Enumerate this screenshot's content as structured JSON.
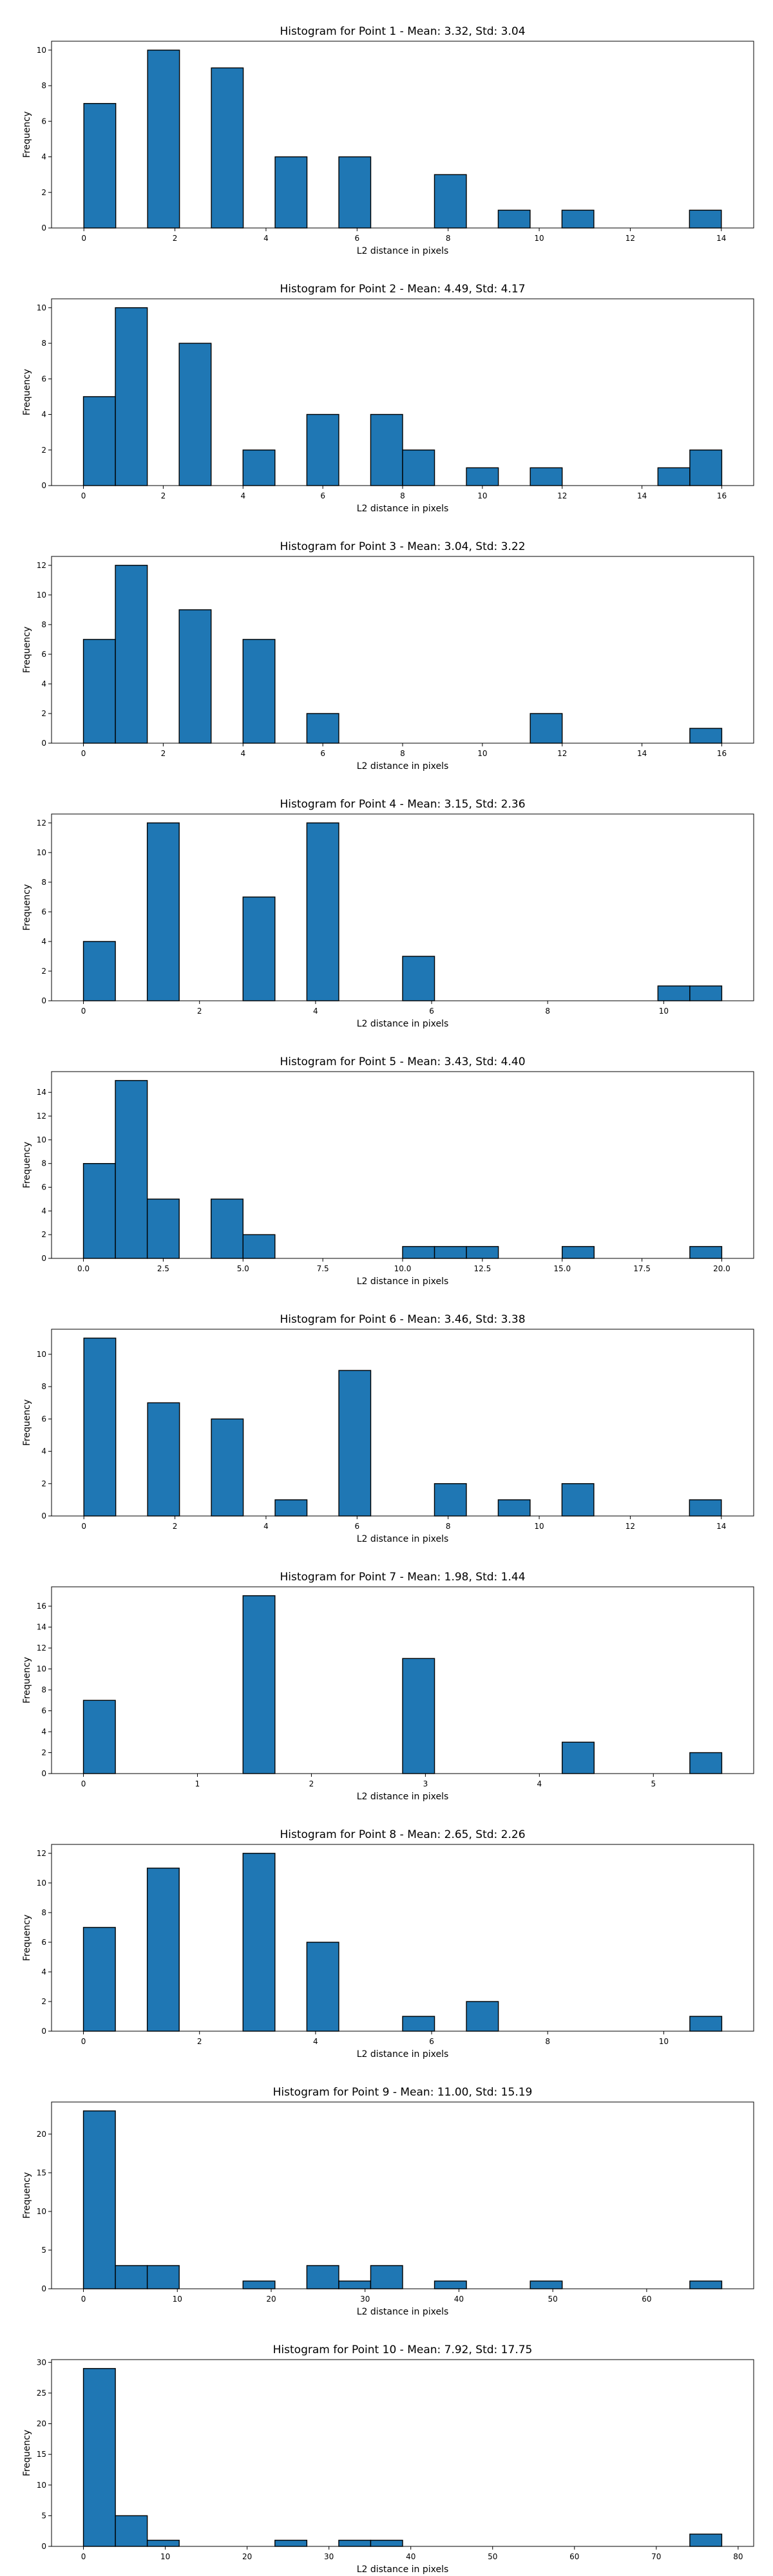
{
  "chart_data": [
    {
      "type": "bar",
      "title": "Histogram for Point 1 - Mean: 3.32, Std: 3.04",
      "xlabel": "L2 distance in pixels",
      "ylabel": "Frequency",
      "xlim": [
        -0.71,
        14.71
      ],
      "ylim": [
        0,
        10.5
      ],
      "xticks": [
        0,
        2,
        4,
        6,
        8,
        10,
        12,
        14
      ],
      "xtick_labels": [
        "0",
        "2",
        "4",
        "6",
        "8",
        "10",
        "12",
        "14"
      ],
      "yticks": [
        0,
        2,
        4,
        6,
        8,
        10
      ],
      "ytick_labels": [
        "0",
        "2",
        "4",
        "6",
        "8",
        "10"
      ],
      "bin_edges": [
        0,
        0.7,
        1.4,
        2.1,
        2.8,
        3.5,
        4.2,
        4.9,
        5.6,
        6.3,
        7.0,
        7.7,
        8.4,
        9.1,
        9.8,
        10.5,
        11.2,
        11.9,
        12.6,
        13.3,
        14.0
      ],
      "values": [
        7,
        0,
        10,
        0,
        9,
        0,
        4,
        0,
        4,
        0,
        0,
        3,
        0,
        1,
        0,
        1,
        0,
        0,
        0,
        1
      ]
    },
    {
      "type": "bar",
      "title": "Histogram for Point 2 - Mean: 4.49, Std: 4.17",
      "xlabel": "L2 distance in pixels",
      "ylabel": "Frequency",
      "xlim": [
        -0.8,
        16.8
      ],
      "ylim": [
        0,
        10.5
      ],
      "xticks": [
        0,
        2,
        4,
        6,
        8,
        10,
        12,
        14,
        16
      ],
      "xtick_labels": [
        "0",
        "2",
        "4",
        "6",
        "8",
        "10",
        "12",
        "14",
        "16"
      ],
      "yticks": [
        0,
        2,
        4,
        6,
        8,
        10
      ],
      "ytick_labels": [
        "0",
        "2",
        "4",
        "6",
        "8",
        "10"
      ],
      "bin_edges": [
        0,
        0.8,
        1.6,
        2.4,
        3.2,
        4.0,
        4.8,
        5.6,
        6.4,
        7.2,
        8.0,
        8.8,
        9.6,
        10.4,
        11.2,
        12.0,
        12.8,
        13.6,
        14.4,
        15.2,
        16.0
      ],
      "values": [
        5,
        10,
        0,
        8,
        0,
        2,
        0,
        4,
        0,
        4,
        2,
        0,
        1,
        0,
        1,
        0,
        0,
        0,
        1,
        2
      ]
    },
    {
      "type": "bar",
      "title": "Histogram for Point 3 - Mean: 3.04, Std: 3.22",
      "xlabel": "L2 distance in pixels",
      "ylabel": "Frequency",
      "xlim": [
        -0.8,
        16.8
      ],
      "ylim": [
        0,
        12.6
      ],
      "xticks": [
        0,
        2,
        4,
        6,
        8,
        10,
        12,
        14,
        16
      ],
      "xtick_labels": [
        "0",
        "2",
        "4",
        "6",
        "8",
        "10",
        "12",
        "14",
        "16"
      ],
      "yticks": [
        0,
        2,
        4,
        6,
        8,
        10,
        12
      ],
      "ytick_labels": [
        "0",
        "2",
        "4",
        "6",
        "8",
        "10",
        "12"
      ],
      "bin_edges": [
        0,
        0.8,
        1.6,
        2.4,
        3.2,
        4.0,
        4.8,
        5.6,
        6.4,
        7.2,
        8.0,
        8.8,
        9.6,
        10.4,
        11.2,
        12.0,
        12.8,
        13.6,
        14.4,
        15.2,
        16.0
      ],
      "values": [
        7,
        12,
        0,
        9,
        0,
        7,
        0,
        2,
        0,
        0,
        0,
        0,
        0,
        0,
        2,
        0,
        0,
        0,
        0,
        1
      ]
    },
    {
      "type": "bar",
      "title": "Histogram for Point 4 - Mean: 3.15, Std: 2.36",
      "xlabel": "L2 distance in pixels",
      "ylabel": "Frequency",
      "xlim": [
        -0.55,
        11.55
      ],
      "ylim": [
        0,
        12.6
      ],
      "xticks": [
        0,
        2,
        4,
        6,
        8,
        10
      ],
      "xtick_labels": [
        "0",
        "2",
        "4",
        "6",
        "8",
        "10"
      ],
      "yticks": [
        0,
        2,
        4,
        6,
        8,
        10,
        12
      ],
      "ytick_labels": [
        "0",
        "2",
        "4",
        "6",
        "8",
        "10",
        "12"
      ],
      "bin_edges": [
        0,
        0.55,
        1.1,
        1.65,
        2.2,
        2.75,
        3.3,
        3.85,
        4.4,
        4.95,
        5.5,
        6.05,
        6.6,
        7.15,
        7.7,
        8.25,
        8.8,
        9.35,
        9.9,
        10.45,
        11.0
      ],
      "values": [
        4,
        0,
        12,
        0,
        0,
        7,
        0,
        12,
        0,
        0,
        3,
        0,
        0,
        0,
        0,
        0,
        0,
        0,
        1,
        1
      ]
    },
    {
      "type": "bar",
      "title": "Histogram for Point 5 - Mean: 3.43, Std: 4.40",
      "xlabel": "L2 distance in pixels",
      "ylabel": "Frequency",
      "xlim": [
        -1.0,
        21.0
      ],
      "ylim": [
        0,
        15.75
      ],
      "xticks": [
        0,
        2.5,
        5,
        7.5,
        10,
        12.5,
        15,
        17.5,
        20
      ],
      "xtick_labels": [
        "0.0",
        "2.5",
        "5.0",
        "7.5",
        "10.0",
        "12.5",
        "15.0",
        "17.5",
        "20.0"
      ],
      "yticks": [
        0,
        2,
        4,
        6,
        8,
        10,
        12,
        14
      ],
      "ytick_labels": [
        "0",
        "2",
        "4",
        "6",
        "8",
        "10",
        "12",
        "14"
      ],
      "bin_edges": [
        0,
        1,
        2,
        3,
        4,
        5,
        6,
        7,
        8,
        9,
        10,
        11,
        12,
        13,
        14,
        15,
        16,
        17,
        18,
        19,
        20
      ],
      "values": [
        8,
        15,
        5,
        0,
        5,
        2,
        0,
        0,
        0,
        0,
        1,
        1,
        1,
        0,
        0,
        1,
        0,
        0,
        0,
        1
      ]
    },
    {
      "type": "bar",
      "title": "Histogram for Point 6 - Mean: 3.46, Std: 3.38",
      "xlabel": "L2 distance in pixels",
      "ylabel": "Frequency",
      "xlim": [
        -0.71,
        14.71
      ],
      "ylim": [
        0,
        11.55
      ],
      "xticks": [
        0,
        2,
        4,
        6,
        8,
        10,
        12,
        14
      ],
      "xtick_labels": [
        "0",
        "2",
        "4",
        "6",
        "8",
        "10",
        "12",
        "14"
      ],
      "yticks": [
        0,
        2,
        4,
        6,
        8,
        10
      ],
      "ytick_labels": [
        "0",
        "2",
        "4",
        "6",
        "8",
        "10"
      ],
      "bin_edges": [
        0,
        0.7,
        1.4,
        2.1,
        2.8,
        3.5,
        4.2,
        4.9,
        5.6,
        6.3,
        7.0,
        7.7,
        8.4,
        9.1,
        9.8,
        10.5,
        11.2,
        11.9,
        12.6,
        13.3,
        14.0
      ],
      "values": [
        11,
        0,
        7,
        0,
        6,
        0,
        1,
        0,
        9,
        0,
        0,
        2,
        0,
        1,
        0,
        2,
        0,
        0,
        0,
        1
      ]
    },
    {
      "type": "bar",
      "title": "Histogram for Point 7 - Mean: 1.98, Std: 1.44",
      "xlabel": "L2 distance in pixels",
      "ylabel": "Frequency",
      "xlim": [
        -0.28,
        5.88
      ],
      "ylim": [
        0,
        17.85
      ],
      "xticks": [
        0,
        1,
        2,
        3,
        4,
        5
      ],
      "xtick_labels": [
        "0",
        "1",
        "2",
        "3",
        "4",
        "5"
      ],
      "yticks": [
        0,
        2,
        4,
        6,
        8,
        10,
        12,
        14,
        16
      ],
      "ytick_labels": [
        "0",
        "2",
        "4",
        "6",
        "8",
        "10",
        "12",
        "14",
        "16"
      ],
      "bin_edges": [
        0,
        0.28,
        0.56,
        0.84,
        1.12,
        1.4,
        1.68,
        1.96,
        2.24,
        2.52,
        2.8,
        3.08,
        3.36,
        3.64,
        3.92,
        4.2,
        4.48,
        4.76,
        5.04,
        5.32,
        5.6
      ],
      "values": [
        7,
        0,
        0,
        0,
        0,
        17,
        0,
        0,
        0,
        0,
        11,
        0,
        0,
        0,
        0,
        3,
        0,
        0,
        0,
        2
      ]
    },
    {
      "type": "bar",
      "title": "Histogram for Point 8 - Mean: 2.65, Std: 2.26",
      "xlabel": "L2 distance in pixels",
      "ylabel": "Frequency",
      "xlim": [
        -0.55,
        11.55
      ],
      "ylim": [
        0,
        12.6
      ],
      "xticks": [
        0,
        2,
        4,
        6,
        8,
        10
      ],
      "xtick_labels": [
        "0",
        "2",
        "4",
        "6",
        "8",
        "10"
      ],
      "yticks": [
        0,
        2,
        4,
        6,
        8,
        10,
        12
      ],
      "ytick_labels": [
        "0",
        "2",
        "4",
        "6",
        "8",
        "10",
        "12"
      ],
      "bin_edges": [
        0,
        0.55,
        1.1,
        1.65,
        2.2,
        2.75,
        3.3,
        3.85,
        4.4,
        4.95,
        5.5,
        6.05,
        6.6,
        7.15,
        7.7,
        8.25,
        8.8,
        9.35,
        9.9,
        10.45,
        11.0
      ],
      "values": [
        7,
        0,
        11,
        0,
        0,
        12,
        0,
        6,
        0,
        0,
        1,
        0,
        2,
        0,
        0,
        0,
        0,
        0,
        0,
        1
      ]
    },
    {
      "type": "bar",
      "title": "Histogram for Point 9 - Mean: 11.00, Std: 15.19",
      "xlabel": "L2 distance in pixels",
      "ylabel": "Frequency",
      "xlim": [
        -3.4,
        71.4
      ],
      "ylim": [
        0,
        24.15
      ],
      "xticks": [
        0,
        10,
        20,
        30,
        40,
        50,
        60
      ],
      "xtick_labels": [
        "0",
        "10",
        "20",
        "30",
        "40",
        "50",
        "60"
      ],
      "yticks": [
        0,
        5,
        10,
        15,
        20
      ],
      "ytick_labels": [
        "0",
        "5",
        "10",
        "15",
        "20"
      ],
      "bin_edges": [
        0,
        3.4,
        6.8,
        10.2,
        13.6,
        17.0,
        20.4,
        23.8,
        27.2,
        30.6,
        34.0,
        37.4,
        40.8,
        44.2,
        47.6,
        51.0,
        54.4,
        57.8,
        61.2,
        64.6,
        68.0
      ],
      "values": [
        23,
        3,
        3,
        0,
        0,
        1,
        0,
        3,
        1,
        3,
        0,
        1,
        0,
        0,
        1,
        0,
        0,
        0,
        0,
        1
      ]
    },
    {
      "type": "bar",
      "title": "Histogram for Point 10 - Mean: 7.92, Std: 17.75",
      "xlabel": "L2 distance in pixels",
      "ylabel": "Frequency",
      "xlim": [
        -3.9,
        81.9
      ],
      "ylim": [
        0,
        30.45
      ],
      "xticks": [
        0,
        10,
        20,
        30,
        40,
        50,
        60,
        70,
        80
      ],
      "xtick_labels": [
        "0",
        "10",
        "20",
        "30",
        "40",
        "50",
        "60",
        "70",
        "80"
      ],
      "yticks": [
        0,
        5,
        10,
        15,
        20,
        25,
        30
      ],
      "ytick_labels": [
        "0",
        "5",
        "10",
        "15",
        "20",
        "25",
        "30"
      ],
      "bin_edges": [
        0,
        3.9,
        7.8,
        11.7,
        15.6,
        19.5,
        23.4,
        27.3,
        31.2,
        35.1,
        39.0,
        42.9,
        46.8,
        50.7,
        54.6,
        58.5,
        62.4,
        66.3,
        70.2,
        74.1,
        78.0
      ],
      "values": [
        29,
        5,
        1,
        0,
        0,
        0,
        1,
        0,
        1,
        1,
        0,
        0,
        0,
        0,
        0,
        0,
        0,
        0,
        0,
        2
      ]
    }
  ]
}
